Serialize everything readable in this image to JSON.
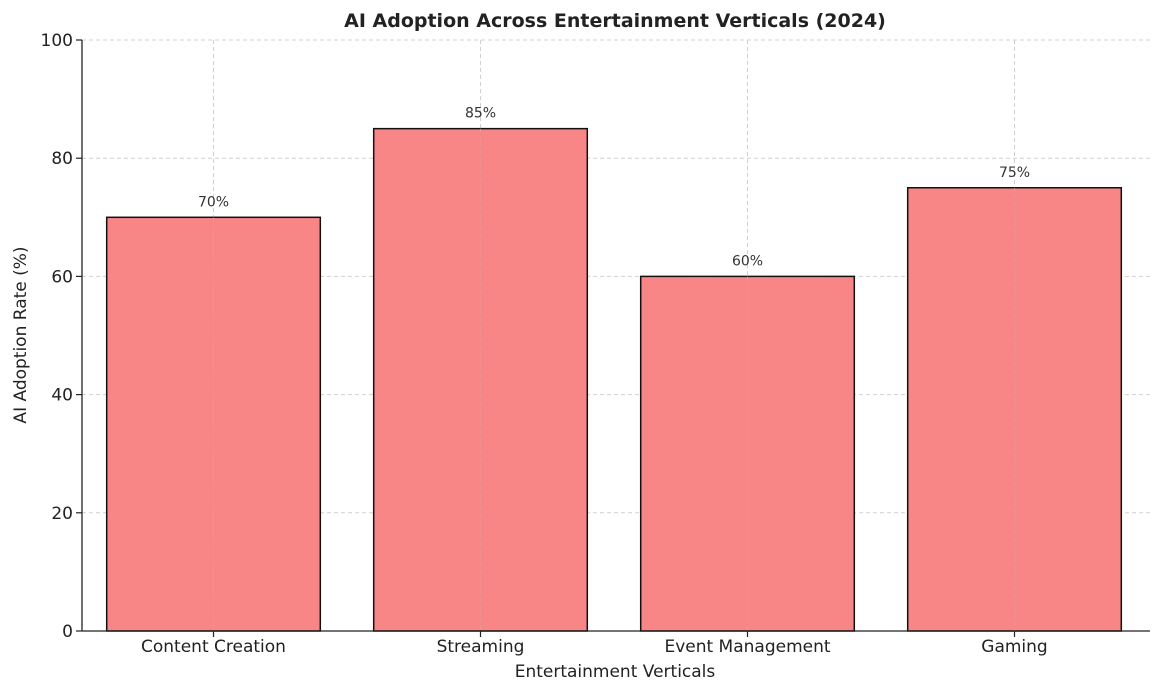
{
  "chart_data": {
    "type": "bar",
    "title": "AI Adoption Across Entertainment Verticals (2024)",
    "xlabel": "Entertainment Verticals",
    "ylabel": "AI Adoption Rate (%)",
    "categories": [
      "Content Creation",
      "Streaming",
      "Event Management",
      "Gaming"
    ],
    "values": [
      70,
      85,
      60,
      75
    ],
    "data_labels": [
      "70%",
      "85%",
      "60%",
      "75%"
    ],
    "ylim": [
      0,
      100
    ],
    "yticks": [
      0,
      20,
      40,
      60,
      80,
      100
    ],
    "grid": true,
    "colors": {
      "bar": "#F88686",
      "edge": "#111111",
      "grid": "#d0d0d0"
    }
  }
}
